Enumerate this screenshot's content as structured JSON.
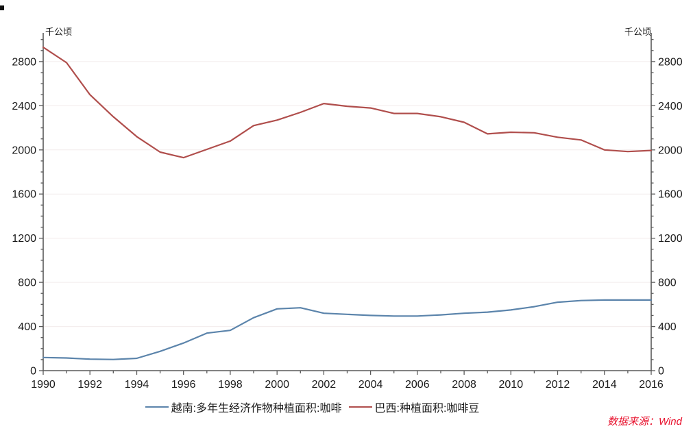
{
  "chart_data": {
    "type": "line",
    "unit_label_left": "千公顷",
    "unit_label_right": "千公顷",
    "x": [
      1990,
      1991,
      1992,
      1993,
      1994,
      1995,
      1996,
      1997,
      1998,
      1999,
      2000,
      2001,
      2002,
      2003,
      2004,
      2005,
      2006,
      2007,
      2008,
      2009,
      2010,
      2011,
      2012,
      2013,
      2014,
      2015,
      2016
    ],
    "series": [
      {
        "name": "越南:多年生经济作物种植面积:咖啡",
        "data_name": "vietnam-coffee-line",
        "color": "#5b84ab",
        "values": [
          119,
          115,
          104,
          101,
          112,
          175,
          250,
          340,
          365,
          480,
          560,
          570,
          520,
          510,
          500,
          495,
          495,
          505,
          520,
          530,
          550,
          580,
          620,
          635,
          640,
          640,
          640
        ]
      },
      {
        "name": "巴西:种植面积:咖啡豆",
        "data_name": "brazil-coffee-line",
        "color": "#b04e4c",
        "values": [
          2930,
          2790,
          2500,
          2300,
          2120,
          1980,
          1930,
          2005,
          2080,
          2220,
          2270,
          2340,
          2420,
          2395,
          2380,
          2330,
          2330,
          2300,
          2250,
          2145,
          2160,
          2155,
          2115,
          2090,
          2000,
          1985,
          1995
        ]
      }
    ],
    "ylim": [
      0,
      3060
    ],
    "yticks": [
      0,
      400,
      800,
      1200,
      1600,
      2000,
      2400,
      2800
    ],
    "ytick_interval": 400,
    "yminor_interval": 100,
    "xtick_label_step": 2,
    "grid": "horizontal",
    "legend_position": "bottom",
    "colors": {
      "grid": "#f2ecec",
      "axis": "#595959",
      "text": "#1a1a1a"
    }
  },
  "footer": {
    "source_label": "数据来源：Wind",
    "source_color": "#e8112d"
  }
}
